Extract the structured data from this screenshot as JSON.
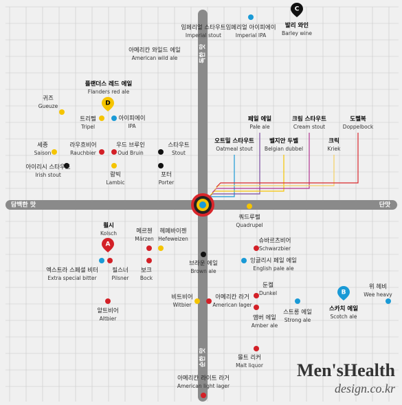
{
  "axis_labels": {
    "top": "독한 맛",
    "bottom": "순한 맛",
    "left": "담백한 맛",
    "right": "단맛"
  },
  "markers": [
    "A",
    "B",
    "C",
    "D"
  ],
  "beers": [
    {
      "ko": "임페리얼 스타우트",
      "en": "Imperial stout"
    },
    {
      "ko": "임페리얼 아이피에이",
      "en": "Imperial IPA"
    },
    {
      "ko": "발리 와인",
      "en": "Barley wine"
    },
    {
      "ko": "아메리칸 와일드 에일",
      "en": "American wild ale"
    },
    {
      "ko": "플랜더스 레드 에일",
      "en": "Flanders red ale"
    },
    {
      "ko": "귀즈",
      "en": "Gueuze"
    },
    {
      "ko": "트리펠",
      "en": "Tripel"
    },
    {
      "ko": "아이피에이",
      "en": "IPA"
    },
    {
      "ko": "페일 에일",
      "en": "Pale ale"
    },
    {
      "ko": "크림 스타우트",
      "en": "Cream stout"
    },
    {
      "ko": "도펠복",
      "en": "Doppelbock"
    },
    {
      "ko": "오트밀 스타우트",
      "en": "Oatmeal stout"
    },
    {
      "ko": "벨지안 두벨",
      "en": "Belgian dubbel"
    },
    {
      "ko": "크릭",
      "en": "Kriek"
    },
    {
      "ko": "세종",
      "en": "Saison"
    },
    {
      "ko": "라우흐비어",
      "en": "Rauchbier"
    },
    {
      "ko": "우드 브루인",
      "en": "Oud Bruin"
    },
    {
      "ko": "스타우트",
      "en": "Stout"
    },
    {
      "ko": "아이리시 스타우트",
      "en": "Irish stout"
    },
    {
      "ko": "람빅",
      "en": "Lambic"
    },
    {
      "ko": "포터",
      "en": "Porter"
    },
    {
      "ko": "쿼드루펠",
      "en": "Quadrupel"
    },
    {
      "ko": "쾰시",
      "en": "Kolsch"
    },
    {
      "ko": "메르첸",
      "en": "Märzen"
    },
    {
      "ko": "헤페바이젠",
      "en": "Hefeweizen"
    },
    {
      "ko": "슈바르츠비어",
      "en": "Schwarzbier"
    },
    {
      "ko": "브라운 에일",
      "en": "Brown ale"
    },
    {
      "ko": "잉글리시 페일 에일",
      "en": "English pale ale"
    },
    {
      "ko": "엑스트라 스페셜 비터",
      "en": "Extra special bitter"
    },
    {
      "ko": "필스너",
      "en": "Pilsner"
    },
    {
      "ko": "보크",
      "en": "Bock"
    },
    {
      "ko": "둔켈",
      "en": "Dunkel"
    },
    {
      "ko": "위 헤비",
      "en": "Wee heavy"
    },
    {
      "ko": "스카치 에일",
      "en": "Scotch ale"
    },
    {
      "ko": "비트비어",
      "en": "Witbier"
    },
    {
      "ko": "아메리칸 라거",
      "en": "American lager"
    },
    {
      "ko": "알트비어",
      "en": "Altbier"
    },
    {
      "ko": "스트롱 에일",
      "en": "Strong ale"
    },
    {
      "ko": "앰버 에일",
      "en": "Amber ale"
    },
    {
      "ko": "몰트 리커",
      "en": "Malt liquor"
    },
    {
      "ko": "아메리칸 라이트 라거",
      "en": "American light lager"
    }
  ],
  "logo": {
    "brand": "Men'sHealth",
    "site": "design.co.kr"
  }
}
